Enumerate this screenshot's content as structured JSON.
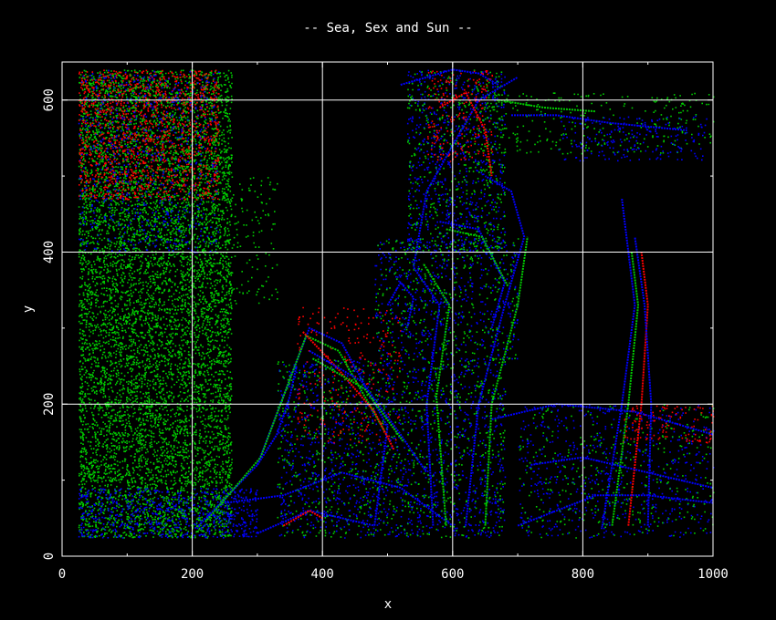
{
  "chart_data": {
    "type": "scatter",
    "title": "-- Sea, Sex and Sun --",
    "xlabel": "x",
    "ylabel": "y",
    "xlim": [
      0,
      1000
    ],
    "ylim": [
      0,
      650
    ],
    "xticks": [
      0,
      200,
      400,
      600,
      800,
      1000
    ],
    "yticks": [
      0,
      200,
      400,
      600
    ],
    "grid": true,
    "colors": {
      "background": "#000000",
      "frame": "#ffffff",
      "red": "#ff0000",
      "green": "#00cc00",
      "blue": "#0000ff"
    },
    "note_series_colors": [
      "#ff0000",
      "#00cc00",
      "#0000ff"
    ],
    "regions": [
      {
        "color": "#00cc00",
        "x": [
          25,
          260
        ],
        "y": [
          25,
          640
        ],
        "n": 9000
      },
      {
        "color": "#ff0000",
        "x": [
          25,
          240
        ],
        "y": [
          470,
          640
        ],
        "n": 1500
      },
      {
        "color": "#0000ff",
        "x": [
          25,
          240
        ],
        "y": [
          400,
          640
        ],
        "n": 700
      },
      {
        "color": "#0000ff",
        "x": [
          25,
          300
        ],
        "y": [
          25,
          90
        ],
        "n": 700
      },
      {
        "color": "#00cc00",
        "x": [
          180,
          330
        ],
        "y": [
          330,
          500
        ],
        "n": 250
      },
      {
        "color": "#00cc00",
        "x": [
          640,
          1000
        ],
        "y": [
          530,
          610
        ],
        "n": 300
      },
      {
        "color": "#0000ff",
        "x": [
          760,
          990
        ],
        "y": [
          520,
          580
        ],
        "n": 200
      },
      {
        "color": "#0000ff",
        "x": [
          330,
          680
        ],
        "y": [
          25,
          260
        ],
        "n": 1400
      },
      {
        "color": "#00cc00",
        "x": [
          330,
          680
        ],
        "y": [
          25,
          260
        ],
        "n": 900
      },
      {
        "color": "#ff0000",
        "x": [
          360,
          520
        ],
        "y": [
          150,
          330
        ],
        "n": 250
      },
      {
        "color": "#0000ff",
        "x": [
          480,
          700
        ],
        "y": [
          260,
          420
        ],
        "n": 500
      },
      {
        "color": "#00cc00",
        "x": [
          480,
          700
        ],
        "y": [
          260,
          420
        ],
        "n": 350
      },
      {
        "color": "#0000ff",
        "x": [
          530,
          680
        ],
        "y": [
          400,
          640
        ],
        "n": 700
      },
      {
        "color": "#00cc00",
        "x": [
          530,
          680
        ],
        "y": [
          400,
          640
        ],
        "n": 500
      },
      {
        "color": "#ff0000",
        "x": [
          560,
          660
        ],
        "y": [
          520,
          640
        ],
        "n": 200
      },
      {
        "color": "#0000ff",
        "x": [
          700,
          1000
        ],
        "y": [
          25,
          200
        ],
        "n": 600
      },
      {
        "color": "#00cc00",
        "x": [
          700,
          1000
        ],
        "y": [
          25,
          200
        ],
        "n": 350
      },
      {
        "color": "#ff0000",
        "x": [
          860,
          1000
        ],
        "y": [
          150,
          200
        ],
        "n": 120
      }
    ],
    "curves": [
      {
        "color": "#0000ff",
        "pts": [
          [
            210,
            40
          ],
          [
            300,
            120
          ],
          [
            380,
            300
          ],
          [
            430,
            280
          ],
          [
            500,
            170
          ],
          [
            480,
            40
          ]
        ]
      },
      {
        "color": "#00cc00",
        "pts": [
          [
            220,
            45
          ],
          [
            305,
            130
          ],
          [
            375,
            290
          ],
          [
            425,
            270
          ],
          [
            495,
            165
          ]
        ]
      },
      {
        "color": "#ff0000",
        "pts": [
          [
            370,
            295
          ],
          [
            420,
            250
          ],
          [
            480,
            190
          ],
          [
            510,
            140
          ]
        ]
      },
      {
        "color": "#0000ff",
        "pts": [
          [
            380,
            270
          ],
          [
            460,
            230
          ],
          [
            520,
            160
          ],
          [
            560,
            110
          ]
        ]
      },
      {
        "color": "#00cc00",
        "pts": [
          [
            385,
            260
          ],
          [
            465,
            220
          ],
          [
            525,
            150
          ]
        ]
      },
      {
        "color": "#0000ff",
        "pts": [
          [
            250,
            70
          ],
          [
            340,
            80
          ],
          [
            430,
            110
          ],
          [
            520,
            90
          ],
          [
            600,
            40
          ]
        ]
      },
      {
        "color": "#0000ff",
        "pts": [
          [
            300,
            30
          ],
          [
            380,
            60
          ],
          [
            480,
            40
          ]
        ]
      },
      {
        "color": "#0000ff",
        "pts": [
          [
            570,
            40
          ],
          [
            560,
            200
          ],
          [
            580,
            330
          ],
          [
            540,
            380
          ],
          [
            560,
            480
          ],
          [
            600,
            540
          ],
          [
            640,
            600
          ],
          [
            700,
            630
          ]
        ]
      },
      {
        "color": "#00cc00",
        "pts": [
          [
            590,
            40
          ],
          [
            575,
            210
          ],
          [
            595,
            330
          ],
          [
            555,
            385
          ]
        ]
      },
      {
        "color": "#0000ff",
        "pts": [
          [
            620,
            40
          ],
          [
            640,
            200
          ],
          [
            680,
            330
          ],
          [
            710,
            420
          ],
          [
            690,
            480
          ],
          [
            650,
            500
          ]
        ]
      },
      {
        "color": "#00cc00",
        "pts": [
          [
            650,
            40
          ],
          [
            660,
            200
          ],
          [
            700,
            330
          ],
          [
            715,
            420
          ]
        ]
      },
      {
        "color": "#0000ff",
        "pts": [
          [
            830,
            40
          ],
          [
            860,
            200
          ],
          [
            880,
            330
          ],
          [
            870,
            400
          ],
          [
            860,
            470
          ]
        ]
      },
      {
        "color": "#ff0000",
        "pts": [
          [
            870,
            40
          ],
          [
            890,
            200
          ],
          [
            900,
            330
          ],
          [
            890,
            400
          ]
        ]
      },
      {
        "color": "#0000ff",
        "pts": [
          [
            900,
            40
          ],
          [
            905,
            200
          ],
          [
            895,
            330
          ],
          [
            880,
            420
          ]
        ]
      },
      {
        "color": "#00cc00",
        "pts": [
          [
            845,
            40
          ],
          [
            870,
            200
          ],
          [
            885,
            330
          ],
          [
            875,
            400
          ]
        ]
      },
      {
        "color": "#0000ff",
        "pts": [
          [
            700,
            40
          ],
          [
            760,
            60
          ],
          [
            820,
            80
          ],
          [
            900,
            80
          ],
          [
            1000,
            70
          ]
        ]
      },
      {
        "color": "#0000ff",
        "pts": [
          [
            720,
            120
          ],
          [
            800,
            130
          ],
          [
            900,
            110
          ],
          [
            1000,
            90
          ]
        ]
      },
      {
        "color": "#0000ff",
        "pts": [
          [
            660,
            180
          ],
          [
            760,
            200
          ],
          [
            880,
            190
          ],
          [
            1000,
            160
          ]
        ]
      },
      {
        "color": "#0000ff",
        "pts": [
          [
            500,
            330
          ],
          [
            520,
            360
          ],
          [
            540,
            340
          ],
          [
            530,
            300
          ]
        ]
      },
      {
        "color": "#0000ff",
        "pts": [
          [
            580,
            440
          ],
          [
            640,
            430
          ],
          [
            680,
            360
          ],
          [
            660,
            300
          ]
        ]
      },
      {
        "color": "#00cc00",
        "pts": [
          [
            590,
            430
          ],
          [
            645,
            420
          ],
          [
            685,
            355
          ]
        ]
      },
      {
        "color": "#0000ff",
        "pts": [
          [
            520,
            620
          ],
          [
            560,
            630
          ],
          [
            600,
            640
          ],
          [
            640,
            635
          ],
          [
            670,
            620
          ]
        ]
      },
      {
        "color": "#ff0000",
        "pts": [
          [
            580,
            590
          ],
          [
            620,
            610
          ],
          [
            650,
            560
          ],
          [
            660,
            500
          ]
        ]
      },
      {
        "color": "#0000ff",
        "pts": [
          [
            690,
            580
          ],
          [
            760,
            580
          ],
          [
            840,
            570
          ],
          [
            960,
            560
          ]
        ]
      },
      {
        "color": "#00cc00",
        "pts": [
          [
            670,
            600
          ],
          [
            740,
            590
          ],
          [
            820,
            585
          ]
        ]
      },
      {
        "color": "#0000ff",
        "pts": [
          [
            300,
            120
          ],
          [
            330,
            160
          ],
          [
            350,
            210
          ],
          [
            360,
            250
          ]
        ]
      },
      {
        "color": "#ff0000",
        "pts": [
          [
            340,
            40
          ],
          [
            380,
            60
          ],
          [
            400,
            50
          ]
        ]
      }
    ]
  }
}
